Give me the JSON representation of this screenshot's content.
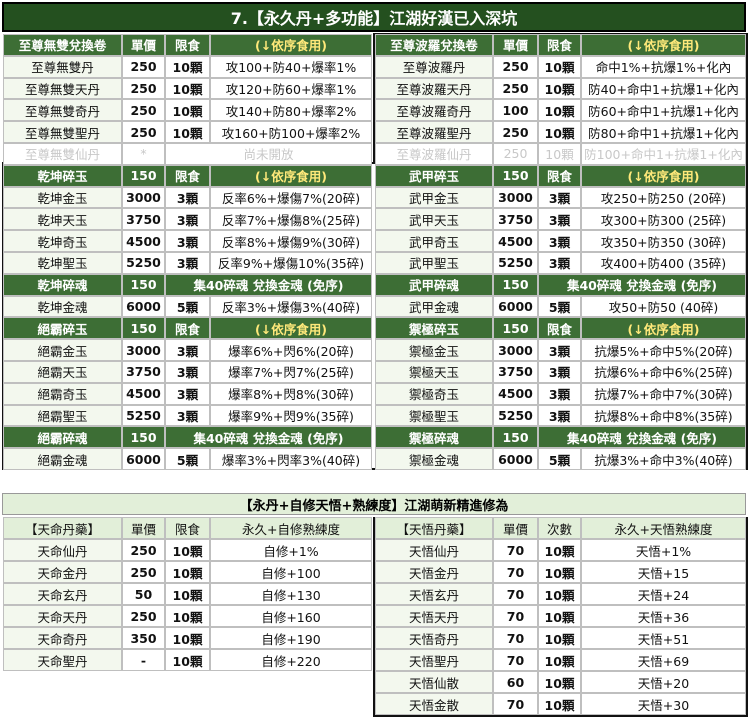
{
  "title": "7.【永久丹+多功能】江湖好漢已入深坑",
  "top_rows": [
    {
      "kind": "header",
      "left": [
        "至尊無雙兌換卷",
        "單價",
        "限食",
        "(↓依序食用)"
      ],
      "right": [
        "至尊波羅兌換卷",
        "單價",
        "限食",
        "(↓依序食用)"
      ]
    },
    {
      "kind": "row",
      "left": [
        "至尊無雙丹",
        "250",
        "10顆",
        "攻100+防40+爆率1%"
      ],
      "right": [
        "至尊波羅丹",
        "250",
        "10顆",
        "命中1%+抗爆1%+化內"
      ]
    },
    {
      "kind": "row",
      "left": [
        "至尊無雙天丹",
        "250",
        "10顆",
        "攻120+防60+爆率1%"
      ],
      "right": [
        "至尊波羅天丹",
        "250",
        "10顆",
        "防40+命中1+抗爆1+化內"
      ]
    },
    {
      "kind": "row",
      "left": [
        "至尊無雙奇丹",
        "250",
        "10顆",
        "攻140+防80+爆率2%"
      ],
      "right": [
        "至尊波羅奇丹",
        "100",
        "10顆",
        "防60+命中1+抗爆1+化內"
      ]
    },
    {
      "kind": "row",
      "left": [
        "至尊無雙聖丹",
        "250",
        "10顆",
        "攻160+防100+爆率2%"
      ],
      "right": [
        "至尊波羅聖丹",
        "250",
        "10顆",
        "防80+命中1+抗爆1+化內"
      ]
    },
    {
      "kind": "faded",
      "left": [
        "至尊無雙仙丹",
        "*",
        "尚未開放"
      ],
      "right": [
        "至尊波羅仙丹",
        "250",
        "10顆",
        "防100+命中1+抗爆1+化內"
      ]
    },
    {
      "kind": "header",
      "left": [
        "乾坤碎玉",
        "150",
        "限食",
        "(↓依序食用)"
      ],
      "right": [
        "武甲碎玉",
        "150",
        "限食",
        "(↓依序食用)"
      ]
    },
    {
      "kind": "row",
      "left": [
        "乾坤金玉",
        "3000",
        "3顆",
        "反率6%+爆傷7%(20碎)"
      ],
      "right": [
        "武甲金玉",
        "3000",
        "3顆",
        "攻250+防250 (20碎)"
      ]
    },
    {
      "kind": "row",
      "left": [
        "乾坤天玉",
        "3750",
        "3顆",
        "反率7%+爆傷8%(25碎)"
      ],
      "right": [
        "武甲天玉",
        "3750",
        "3顆",
        "攻300+防300 (25碎)"
      ]
    },
    {
      "kind": "row",
      "left": [
        "乾坤奇玉",
        "4500",
        "3顆",
        "反率8%+爆傷9%(30碎)"
      ],
      "right": [
        "武甲奇玉",
        "4500",
        "3顆",
        "攻350+防350 (30碎)"
      ]
    },
    {
      "kind": "row",
      "left": [
        "乾坤聖玉",
        "5250",
        "3顆",
        "反率9%+爆傷10%(35碎)"
      ],
      "right": [
        "武甲聖玉",
        "5250",
        "3顆",
        "攻400+防400 (35碎)"
      ]
    },
    {
      "kind": "header",
      "left": [
        "乾坤碎魂",
        "150",
        "集40碎魂 兌換金魂 (免序)"
      ],
      "right": [
        "武甲碎魂",
        "150",
        "集40碎魂 兌換金魂 (免序)"
      ]
    },
    {
      "kind": "row",
      "left": [
        "乾坤金魂",
        "6000",
        "5顆",
        "反率3%+爆傷3%(40碎)"
      ],
      "right": [
        "武甲金魂",
        "6000",
        "5顆",
        "攻50+防50 (40碎)"
      ]
    },
    {
      "kind": "header",
      "left": [
        "絕霸碎玉",
        "150",
        "限食",
        "(↓依序食用)"
      ],
      "right": [
        "禦極碎玉",
        "150",
        "限食",
        "(↓依序食用)"
      ]
    },
    {
      "kind": "row",
      "left": [
        "絕霸金玉",
        "3000",
        "3顆",
        "爆率6%+閃6%(20碎)"
      ],
      "right": [
        "禦極金玉",
        "3000",
        "3顆",
        "抗爆5%+命中5%(20碎)"
      ]
    },
    {
      "kind": "row",
      "left": [
        "絕霸天玉",
        "3750",
        "3顆",
        "爆率7%+閃7%(25碎)"
      ],
      "right": [
        "禦極天玉",
        "3750",
        "3顆",
        "抗爆6%+命中6%(25碎)"
      ]
    },
    {
      "kind": "row",
      "left": [
        "絕霸奇玉",
        "4500",
        "3顆",
        "爆率8%+閃8%(30碎)"
      ],
      "right": [
        "禦極奇玉",
        "4500",
        "3顆",
        "抗爆7%+命中7%(30碎)"
      ]
    },
    {
      "kind": "row",
      "left": [
        "絕霸聖玉",
        "5250",
        "3顆",
        "爆率9%+閃9%(35碎)"
      ],
      "right": [
        "禦極聖玉",
        "5250",
        "3顆",
        "抗爆8%+命中8%(35碎)"
      ]
    },
    {
      "kind": "header",
      "left": [
        "絕霸碎魂",
        "150",
        "集40碎魂 兌換金魂 (免序)"
      ],
      "right": [
        "禦極碎魂",
        "150",
        "集40碎魂 兌換金魂 (免序)"
      ]
    },
    {
      "kind": "row",
      "left": [
        "絕霸金魂",
        "6000",
        "5顆",
        "爆率3%+閃率3%(40碎)"
      ],
      "right": [
        "禦極金魂",
        "6000",
        "5顆",
        "抗爆3%+命中3%(40碎)"
      ]
    }
  ],
  "section_title": "【永丹+自修天悟+熟練度】江湖萌新精進修為",
  "bottom_rows": [
    {
      "kind": "subheader",
      "left": [
        "【天命丹藥】",
        "單價",
        "限食",
        "永久+自修熟練度"
      ],
      "right": [
        "【天悟丹藥】",
        "單價",
        "次數",
        "永久+天悟熟練度"
      ]
    },
    {
      "kind": "row",
      "left": [
        "天命仙丹",
        "250",
        "10顆",
        "自修+1%"
      ],
      "right": [
        "天悟仙丹",
        "70",
        "10顆",
        "天悟+1%"
      ]
    },
    {
      "kind": "row",
      "left": [
        "天命金丹",
        "250",
        "10顆",
        "自修+100"
      ],
      "right": [
        "天悟金丹",
        "70",
        "10顆",
        "天悟+15"
      ]
    },
    {
      "kind": "row",
      "left": [
        "天命玄丹",
        "50",
        "10顆",
        "自修+130"
      ],
      "right": [
        "天悟玄丹",
        "70",
        "10顆",
        "天悟+24"
      ]
    },
    {
      "kind": "row",
      "left": [
        "天命天丹",
        "250",
        "10顆",
        "自修+160"
      ],
      "right": [
        "天悟天丹",
        "70",
        "10顆",
        "天悟+36"
      ]
    },
    {
      "kind": "row",
      "left": [
        "天命奇丹",
        "350",
        "10顆",
        "自修+190"
      ],
      "right": [
        "天悟奇丹",
        "70",
        "10顆",
        "天悟+51"
      ]
    },
    {
      "kind": "row",
      "left": [
        "天命聖丹",
        "-",
        "10顆",
        "自修+220"
      ],
      "right": [
        "天悟聖丹",
        "70",
        "10顆",
        "天悟+69"
      ]
    },
    {
      "kind": "row",
      "left": null,
      "right": [
        "天悟仙散",
        "60",
        "10顆",
        "天悟+20"
      ]
    },
    {
      "kind": "row",
      "left": null,
      "right": [
        "天悟金散",
        "70",
        "10顆",
        "天悟+30"
      ]
    }
  ]
}
